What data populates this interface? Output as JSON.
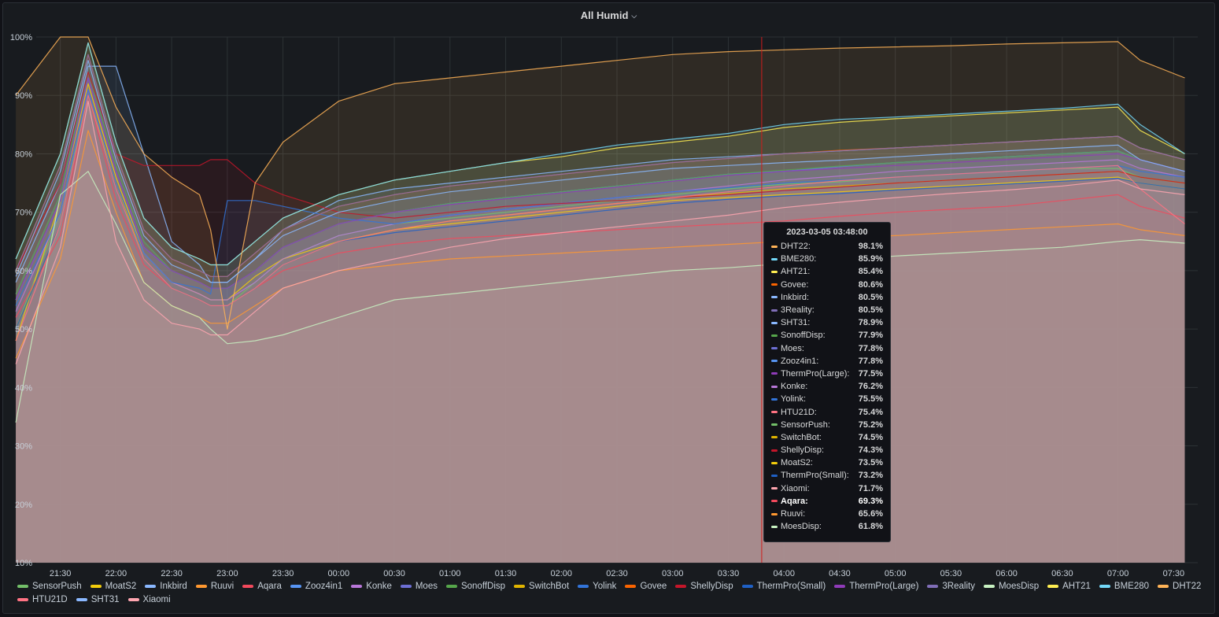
{
  "panel": {
    "title": "All Humid"
  },
  "colors": {
    "background": "#181b1f",
    "grid": "#2c3235",
    "cursor": "#d01c1c"
  },
  "chart_data": {
    "type": "area",
    "title": "All Humid",
    "y_ticks": [
      "10%",
      "20%",
      "30%",
      "40%",
      "50%",
      "60%",
      "70%",
      "80%",
      "90%",
      "100%"
    ],
    "ylim": [
      10,
      100
    ],
    "x_ticks": [
      "21:30",
      "22:00",
      "22:30",
      "23:00",
      "23:30",
      "00:00",
      "00:30",
      "01:00",
      "01:30",
      "02:00",
      "02:30",
      "03:00",
      "03:30",
      "04:00",
      "04:30",
      "05:00",
      "05:30",
      "06:00",
      "06:30",
      "07:00",
      "07:30"
    ],
    "x_hours": [
      21.1,
      21.5,
      21.75,
      22.0,
      22.25,
      22.5,
      22.75,
      22.85,
      23.0,
      23.25,
      23.5,
      24.0,
      24.5,
      25.0,
      25.5,
      26.0,
      26.5,
      27.0,
      27.5,
      28.0,
      28.5,
      29.0,
      29.5,
      30.0,
      30.5,
      31.0,
      31.2,
      31.6
    ],
    "cursor_hour": 27.8,
    "grid": true,
    "legend_position": "bottom",
    "series": [
      {
        "name": "SensorPush",
        "color": "#73bf69",
        "values": [
          50,
          70,
          90,
          75,
          62,
          57,
          55,
          54,
          54,
          58,
          62,
          66,
          68,
          69,
          70,
          71,
          72,
          73,
          74,
          74.8,
          75.2,
          76,
          76.5,
          77,
          77.5,
          77.5,
          76,
          75
        ]
      },
      {
        "name": "MoatS2",
        "color": "#f2cc0c",
        "values": [
          48,
          72,
          92,
          76,
          63,
          58,
          56,
          55,
          55,
          59,
          62,
          65,
          67,
          68,
          69,
          70,
          71,
          72,
          72.5,
          73,
          73.5,
          74,
          74.5,
          75,
          75.5,
          76,
          75,
          74
        ]
      },
      {
        "name": "Inkbird",
        "color": "#8ab8ff",
        "values": [
          58,
          75,
          95,
          95,
          80,
          65,
          61,
          58,
          58,
          62,
          67,
          72,
          74,
          75,
          76,
          77,
          78,
          79,
          79.5,
          80,
          80.5,
          81,
          81.5,
          82,
          82.5,
          83,
          81,
          79
        ]
      },
      {
        "name": "Ruuvi",
        "color": "#ff9830",
        "values": [
          45,
          62,
          84,
          70,
          58,
          54,
          52,
          51,
          51,
          54,
          57,
          60,
          61,
          62,
          62.5,
          63,
          63.5,
          64,
          64.5,
          65,
          65.6,
          66,
          66.5,
          67,
          67.5,
          68,
          67,
          66
        ]
      },
      {
        "name": "Aqara",
        "color": "#f2495c",
        "values": [
          52,
          66,
          90,
          72,
          61,
          57,
          55,
          54,
          54,
          57,
          60,
          63,
          64.5,
          65.5,
          66,
          66.5,
          67,
          67.5,
          68,
          68.5,
          69.3,
          70,
          70.5,
          71,
          72,
          73,
          71,
          69
        ]
      },
      {
        "name": "Zooz4in1",
        "color": "#5794f2",
        "values": [
          55,
          72,
          93,
          77,
          64,
          60,
          58,
          57,
          57,
          60,
          64,
          68,
          70,
          71.5,
          72.5,
          73.5,
          74.5,
          75.5,
          76.5,
          77,
          77.8,
          78.5,
          79,
          79.5,
          80,
          80.5,
          79,
          77
        ]
      },
      {
        "name": "Konke",
        "color": "#b877d9",
        "values": [
          53,
          70,
          91,
          75,
          63,
          58,
          56,
          55,
          55,
          58,
          62,
          66,
          68,
          69.5,
          70.5,
          71.5,
          72.5,
          73.5,
          74.5,
          75.5,
          76.2,
          77,
          77.5,
          78,
          78.5,
          79,
          77.5,
          76
        ]
      },
      {
        "name": "Moes",
        "color": "#6d6fd4",
        "values": [
          56,
          73,
          94,
          78,
          65,
          60,
          58,
          57,
          57,
          60,
          64,
          68,
          70,
          71.5,
          72.5,
          73.5,
          74.5,
          75.5,
          76.5,
          77,
          77.8,
          78.5,
          79,
          79.5,
          80,
          80.5,
          79,
          77
        ]
      },
      {
        "name": "SonoffDisp",
        "color": "#56a64b",
        "values": [
          56,
          73,
          94,
          78,
          65,
          60,
          58,
          57,
          57,
          60,
          64,
          68,
          70,
          71.5,
          72.5,
          73.5,
          74.5,
          75.5,
          76.5,
          77.2,
          77.9,
          78.5,
          79,
          79.5,
          80,
          80.5,
          79,
          77
        ]
      },
      {
        "name": "SwitchBot",
        "color": "#e0b400",
        "values": [
          50,
          68,
          90,
          75,
          62,
          57,
          55,
          54,
          54,
          57,
          61,
          65,
          67,
          68.5,
          69.5,
          70.5,
          71.5,
          72.5,
          73.2,
          74,
          74.5,
          75,
          75.5,
          76,
          76.5,
          77,
          76,
          75
        ]
      },
      {
        "name": "Yolink",
        "color": "#3274d9",
        "values": [
          54,
          70,
          91,
          75,
          63,
          58,
          57,
          56,
          72,
          72,
          71,
          69,
          68,
          69.5,
          70.5,
          71.5,
          72.5,
          73.5,
          74.2,
          75,
          75.5,
          76,
          76.5,
          77,
          77.5,
          78,
          77,
          76
        ]
      },
      {
        "name": "Govee",
        "color": "#fa6400",
        "values": [
          60,
          78,
          97,
          80,
          67,
          62,
          60,
          59,
          59,
          63,
          67,
          71,
          73,
          74.5,
          75.5,
          76.5,
          77.5,
          78.5,
          79.2,
          80,
          80.6,
          81,
          81.5,
          82,
          82.5,
          83,
          81,
          79
        ]
      },
      {
        "name": "ShellyDisp",
        "color": "#c4162a",
        "values": [
          60,
          75,
          94,
          80,
          78,
          78,
          78,
          79,
          79,
          75,
          73,
          70,
          69,
          70,
          71,
          71.5,
          72,
          72.5,
          73,
          73.7,
          74.3,
          75,
          75.5,
          76,
          76.5,
          77,
          76,
          75
        ]
      },
      {
        "name": "ThermPro(Small)",
        "color": "#1f60c4",
        "values": [
          50,
          68,
          90,
          74,
          62,
          57,
          55,
          54,
          54,
          57,
          61,
          65,
          66.5,
          67.5,
          68.5,
          69.5,
          70.5,
          71.5,
          72.2,
          72.8,
          73.2,
          73.8,
          74.3,
          74.8,
          75.3,
          75.8,
          75,
          74
        ]
      },
      {
        "name": "ThermPro(Large)",
        "color": "#8f3bb8",
        "values": [
          55,
          72,
          93,
          77,
          64,
          60,
          58,
          57,
          57,
          60,
          64,
          68,
          70,
          71.3,
          72.3,
          73.3,
          74.3,
          75.3,
          76.3,
          77,
          77.5,
          78,
          78.5,
          79,
          79.5,
          80,
          79,
          77
        ]
      },
      {
        "name": "3Reality",
        "color": "#806eb7",
        "values": [
          60,
          78,
          97,
          80,
          67,
          62,
          60,
          59,
          59,
          63,
          67,
          71,
          73,
          74.5,
          75.5,
          76.5,
          77.5,
          78.5,
          79.2,
          80,
          80.5,
          81,
          81.5,
          82,
          82.5,
          83,
          81,
          79
        ]
      },
      {
        "name": "MoesDisp",
        "color": "#c8f2c2",
        "values": [
          34,
          73,
          77,
          68,
          58,
          54,
          52,
          50,
          47.5,
          48,
          49,
          52,
          55,
          56,
          57,
          58,
          59,
          60,
          60.5,
          61.2,
          61.8,
          62.5,
          63,
          63.5,
          64,
          65,
          65.3,
          64.7
        ]
      },
      {
        "name": "AHT21",
        "color": "#ffee52",
        "values": [
          62,
          80,
          99,
          82,
          69,
          64,
          62,
          61,
          61,
          65,
          69,
          73,
          75.5,
          77,
          78.5,
          79.5,
          81,
          82,
          83,
          84.5,
          85.4,
          86,
          86.5,
          87,
          87.5,
          88,
          84,
          80
        ]
      },
      {
        "name": "BME280",
        "color": "#73d8f8",
        "values": [
          62,
          80,
          99,
          82,
          69,
          64,
          62,
          61,
          61,
          65,
          69,
          73,
          75.5,
          77,
          78.5,
          80,
          81.5,
          82.5,
          83.5,
          85,
          85.9,
          86.3,
          86.8,
          87.3,
          87.8,
          88.5,
          85,
          80
        ]
      },
      {
        "name": "DHT22",
        "color": "#ffb357",
        "values": [
          90,
          100,
          100,
          88,
          80,
          76,
          73,
          67,
          50,
          75,
          82,
          89,
          92,
          93,
          94,
          95,
          96,
          97,
          97.5,
          97.8,
          98.1,
          98.3,
          98.5,
          98.8,
          99,
          99.2,
          96,
          93
        ]
      },
      {
        "name": "HTU21D",
        "color": "#ff7383",
        "values": [
          48,
          68,
          90,
          74,
          62,
          57,
          55,
          54,
          54,
          57,
          61,
          65,
          67,
          68.5,
          69.5,
          70.5,
          71.5,
          72.5,
          73.5,
          74.5,
          75.4,
          76,
          76.5,
          77,
          77.5,
          78,
          74,
          68
        ]
      },
      {
        "name": "SHT31",
        "color": "#8ab8ff",
        "values": [
          59,
          77,
          96,
          79,
          66,
          61,
          59,
          58,
          58,
          62,
          66,
          70,
          72,
          73.5,
          74.5,
          75.5,
          76.5,
          77.5,
          78,
          78.5,
          78.9,
          79.5,
          80,
          80.5,
          81,
          81.5,
          79,
          77
        ]
      },
      {
        "name": "Xiaomi",
        "color": "#ffa6b0",
        "values": [
          44,
          64,
          89,
          65,
          55,
          51,
          50,
          49,
          49,
          53,
          57,
          60,
          62,
          64,
          65.5,
          66.5,
          67.5,
          68.5,
          69.5,
          70.8,
          71.7,
          72.5,
          73.2,
          73.8,
          74.5,
          75.5,
          74,
          73
        ]
      }
    ]
  },
  "legend": [
    {
      "name": "SensorPush",
      "color": "#73bf69"
    },
    {
      "name": "MoatS2",
      "color": "#f2cc0c"
    },
    {
      "name": "Inkbird",
      "color": "#8ab8ff"
    },
    {
      "name": "Ruuvi",
      "color": "#ff9830"
    },
    {
      "name": "Aqara",
      "color": "#f2495c"
    },
    {
      "name": "Zooz4in1",
      "color": "#5794f2"
    },
    {
      "name": "Konke",
      "color": "#b877d9"
    },
    {
      "name": "Moes",
      "color": "#6d6fd4"
    },
    {
      "name": "SonoffDisp",
      "color": "#56a64b"
    },
    {
      "name": "SwitchBot",
      "color": "#e0b400"
    },
    {
      "name": "Yolink",
      "color": "#3274d9"
    },
    {
      "name": "Govee",
      "color": "#fa6400"
    },
    {
      "name": "ShellyDisp",
      "color": "#c4162a"
    },
    {
      "name": "ThermPro(Small)",
      "color": "#1f60c4"
    },
    {
      "name": "ThermPro(Large)",
      "color": "#8f3bb8"
    },
    {
      "name": "3Reality",
      "color": "#806eb7"
    },
    {
      "name": "MoesDisp",
      "color": "#c8f2c2"
    },
    {
      "name": "AHT21",
      "color": "#ffee52"
    },
    {
      "name": "BME280",
      "color": "#73d8f8"
    },
    {
      "name": "DHT22",
      "color": "#ffb357"
    },
    {
      "name": "HTU21D",
      "color": "#ff7383"
    },
    {
      "name": "SHT31",
      "color": "#8ab8ff"
    },
    {
      "name": "Xiaomi",
      "color": "#ffa6b0"
    }
  ],
  "tooltip": {
    "time": "2023-03-05 03:48:00",
    "rows": [
      {
        "name": "DHT22:",
        "value": "98.1%",
        "color": "#ffb357"
      },
      {
        "name": "BME280:",
        "value": "85.9%",
        "color": "#73d8f8"
      },
      {
        "name": "AHT21:",
        "value": "85.4%",
        "color": "#ffee52"
      },
      {
        "name": "Govee:",
        "value": "80.6%",
        "color": "#fa6400"
      },
      {
        "name": "Inkbird:",
        "value": "80.5%",
        "color": "#8ab8ff"
      },
      {
        "name": "3Reality:",
        "value": "80.5%",
        "color": "#806eb7"
      },
      {
        "name": "SHT31:",
        "value": "78.9%",
        "color": "#8ab8ff"
      },
      {
        "name": "SonoffDisp:",
        "value": "77.9%",
        "color": "#56a64b"
      },
      {
        "name": "Moes:",
        "value": "77.8%",
        "color": "#6d6fd4"
      },
      {
        "name": "Zooz4in1:",
        "value": "77.8%",
        "color": "#5794f2"
      },
      {
        "name": "ThermPro(Large):",
        "value": "77.5%",
        "color": "#8f3bb8"
      },
      {
        "name": "Konke:",
        "value": "76.2%",
        "color": "#b877d9"
      },
      {
        "name": "Yolink:",
        "value": "75.5%",
        "color": "#3274d9"
      },
      {
        "name": "HTU21D:",
        "value": "75.4%",
        "color": "#ff7383"
      },
      {
        "name": "SensorPush:",
        "value": "75.2%",
        "color": "#73bf69"
      },
      {
        "name": "SwitchBot:",
        "value": "74.5%",
        "color": "#e0b400"
      },
      {
        "name": "ShellyDisp:",
        "value": "74.3%",
        "color": "#c4162a"
      },
      {
        "name": "MoatS2:",
        "value": "73.5%",
        "color": "#f2cc0c"
      },
      {
        "name": "ThermPro(Small):",
        "value": "73.2%",
        "color": "#1f60c4"
      },
      {
        "name": "Xiaomi:",
        "value": "71.7%",
        "color": "#ffa6b0"
      },
      {
        "name": "Aqara:",
        "value": "69.3%",
        "color": "#f2495c",
        "highlight": true
      },
      {
        "name": "Ruuvi:",
        "value": "65.6%",
        "color": "#ff9830"
      },
      {
        "name": "MoesDisp:",
        "value": "61.8%",
        "color": "#c8f2c2"
      }
    ]
  }
}
